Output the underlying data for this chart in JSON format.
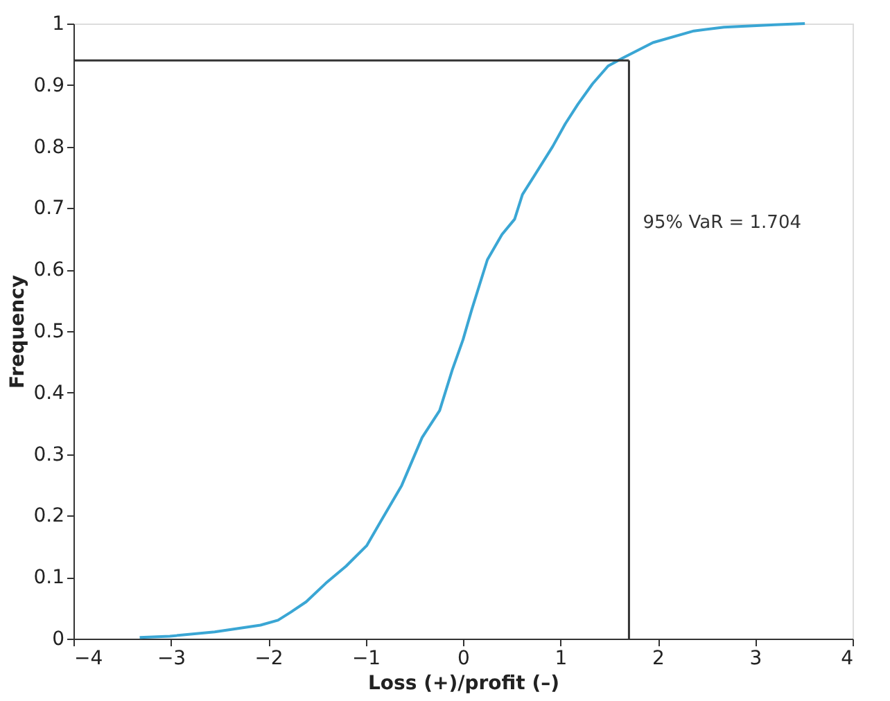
{
  "chart_data": {
    "type": "line",
    "xlabel": "Loss (+)/profit (–)",
    "ylabel": "Frequency",
    "x": [
      -3.32,
      -3.01,
      -2.55,
      -2.08,
      -1.9,
      -1.77,
      -1.61,
      -1.41,
      -1.2,
      -0.99,
      -0.84,
      -0.63,
      -0.42,
      -0.24,
      -0.11,
      0,
      0.09,
      0.25,
      0.4,
      0.53,
      0.61,
      0.71,
      0.92,
      1.05,
      1.18,
      1.33,
      1.49,
      1.64,
      1.95,
      2.37,
      2.68,
      3.2,
      3.51
    ],
    "series": [
      {
        "color": "#3aa6d4",
        "values": [
          0.002,
          0.004,
          0.011,
          0.022,
          0.03,
          0.043,
          0.06,
          0.09,
          0.118,
          0.151,
          0.192,
          0.249,
          0.327,
          0.371,
          0.437,
          0.486,
          0.535,
          0.616,
          0.657,
          0.682,
          0.722,
          0.747,
          0.8,
          0.837,
          0.869,
          0.902,
          0.931,
          0.944,
          0.969,
          0.988,
          0.994,
          0.998,
          1.0
        ]
      }
    ],
    "xlim": [
      -4,
      4
    ],
    "xticks": [
      -4,
      -3,
      -2,
      -1,
      0,
      1,
      2,
      3,
      4
    ],
    "ylim": [
      0,
      1
    ],
    "yticks": [
      0,
      0.1,
      0.2,
      0.3,
      0.4,
      0.5,
      0.6,
      0.7,
      0.8,
      0.9,
      1
    ],
    "ref_lines": [
      {
        "axis": "x",
        "value": 1.704,
        "label": "95% VaR = 1.704",
        "color": "#333333"
      },
      {
        "axis": "y",
        "value": 0.94,
        "color": "#333333"
      }
    ],
    "grid": false,
    "marker": "none",
    "line_style": "solid"
  }
}
